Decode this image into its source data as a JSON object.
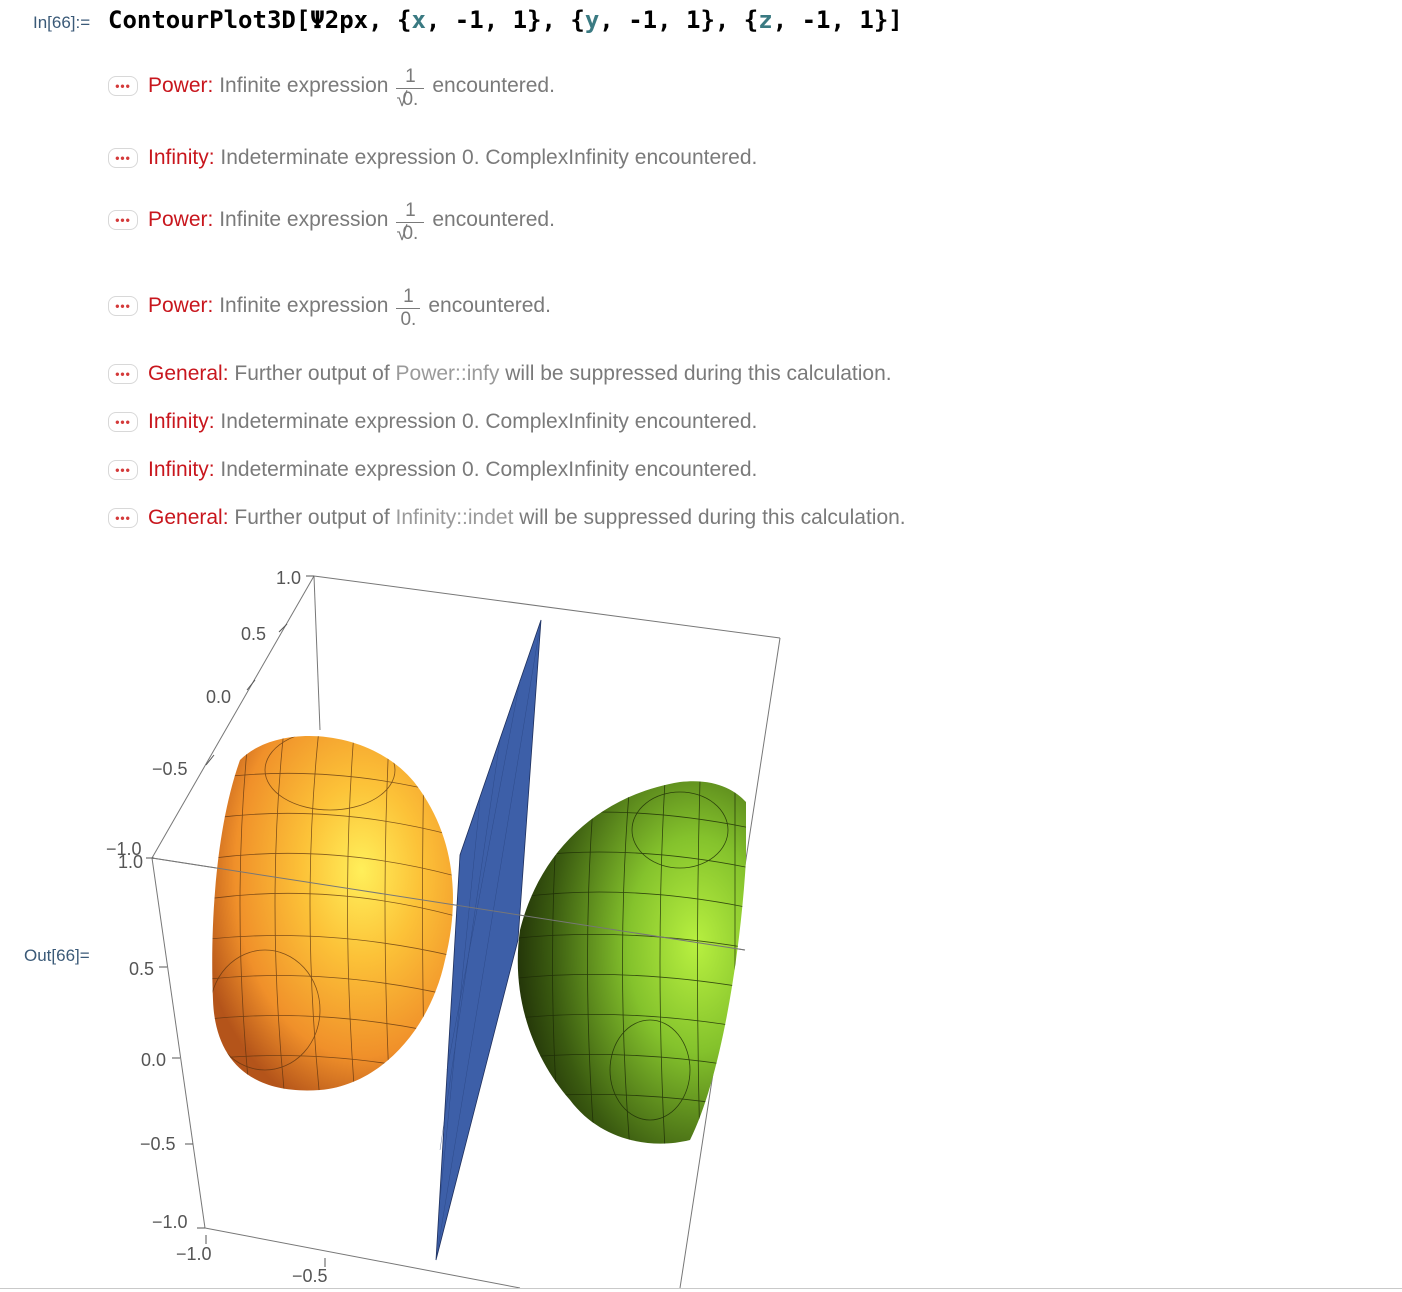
{
  "input": {
    "label": "In[66]:=",
    "code_prefix": "ContourPlot3D[Ψ2px, {",
    "var_x": "x",
    "mid1": ", -1, 1}, {",
    "var_y": "y",
    "mid2": ", -1, 1}, {",
    "var_z": "z",
    "code_suffix": ", -1, 1}]"
  },
  "messages": [
    {
      "tag": "Power",
      "text_before": "Infinite expression",
      "num": "1",
      "den": "0.",
      "den_sqrt": true,
      "text_after": "encountered."
    },
    {
      "tag": "Infinity",
      "text": "Indeterminate expression 0. ComplexInfinity encountered."
    },
    {
      "tag": "Power",
      "text_before": "Infinite expression",
      "num": "1",
      "den": "0.",
      "den_sqrt": true,
      "text_after": "encountered."
    },
    {
      "tag": "Power",
      "text_before": "Infinite expression",
      "num": "1",
      "den": "0.",
      "den_sqrt": false,
      "text_after": "encountered."
    },
    {
      "tag": "General",
      "text_before": "Further output of",
      "symbol": "Power::infy",
      "text_after": "will be suppressed during this calculation."
    },
    {
      "tag": "Infinity",
      "text": "Indeterminate expression 0. ComplexInfinity encountered."
    },
    {
      "tag": "Infinity",
      "text": "Indeterminate expression 0. ComplexInfinity encountered."
    },
    {
      "tag": "General",
      "text_before": "Further output of",
      "symbol": "Infinity::indet",
      "text_after": "will be suppressed during this calculation."
    }
  ],
  "message_colon": ":",
  "output": {
    "label": "Out[66]="
  },
  "plot": {
    "axis_z_ticks": [
      "1.0",
      "0.5",
      "0.0",
      "−0.5",
      "−1.0"
    ],
    "axis_left_ticks": [
      "1.0",
      "0.5",
      "0.0",
      "−0.5",
      "−1.0"
    ],
    "axis_bottom_ticks": [
      "−1.0",
      "−0.5"
    ],
    "colors": {
      "left_lobe": "#f29a2e",
      "left_lobe_highlight": "#ffe04a",
      "right_lobe": "#9fdc3a",
      "right_lobe_dark": "#2a3a0a",
      "plane": "#3d5fa8",
      "box_edge": "#777777"
    }
  }
}
